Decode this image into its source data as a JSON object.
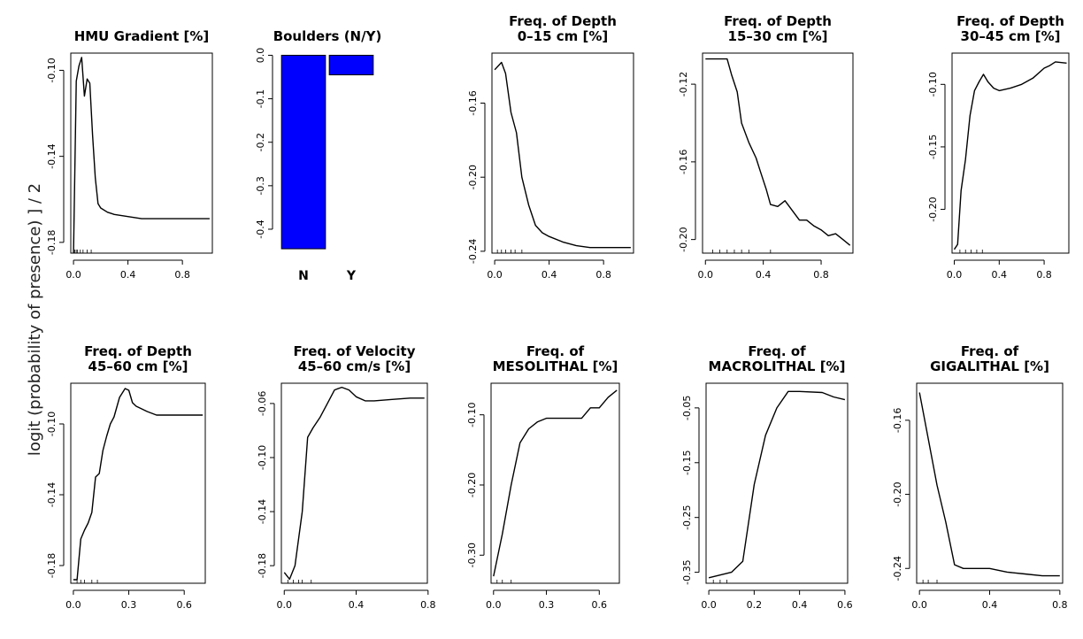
{
  "figure": {
    "ylabel": "logit (probability of presence) ] / 2"
  },
  "chart_data": [
    {
      "type": "line",
      "title": [
        "HMU Gradient [%]"
      ],
      "x": [
        0.0,
        0.02,
        0.04,
        0.06,
        0.08,
        0.1,
        0.12,
        0.14,
        0.16,
        0.18,
        0.2,
        0.25,
        0.3,
        0.4,
        0.5,
        0.6,
        0.8,
        1.0
      ],
      "y": [
        -0.185,
        -0.105,
        -0.098,
        -0.094,
        -0.112,
        -0.104,
        -0.106,
        -0.13,
        -0.15,
        -0.162,
        -0.164,
        -0.166,
        -0.167,
        -0.168,
        -0.169,
        -0.169,
        -0.169,
        -0.169
      ],
      "xlim": [
        -0.02,
        1.02
      ],
      "ylim": [
        -0.185,
        -0.092
      ],
      "xticks": [
        0.0,
        0.4,
        0.8
      ],
      "xticklabels": [
        "0.0",
        "0.4",
        "0.8"
      ],
      "yticks": [
        -0.1,
        -0.14,
        -0.18
      ],
      "yticklabels": [
        "-0.10",
        "-0.14",
        "-0.18"
      ],
      "rug": [
        0.01,
        0.02,
        0.03,
        0.05,
        0.07,
        0.1,
        0.13
      ]
    },
    {
      "type": "bar",
      "title": [
        "Boulders (N/Y)"
      ],
      "categories": [
        "N",
        "Y"
      ],
      "values": [
        -0.445,
        -0.045
      ],
      "ylim": [
        -0.455,
        0.005
      ],
      "yticks": [
        0.0,
        -0.1,
        -0.2,
        -0.3,
        -0.4
      ],
      "yticklabels": [
        "0.0",
        "-0.1",
        "-0.2",
        "-0.3",
        "-0.4"
      ],
      "bar_color": "#0000ff"
    },
    {
      "type": "line",
      "title": [
        "Freq. of Depth",
        "0–15 cm [%]"
      ],
      "x": [
        0.0,
        0.05,
        0.08,
        0.12,
        0.16,
        0.2,
        0.25,
        0.3,
        0.35,
        0.4,
        0.5,
        0.6,
        0.7,
        0.8,
        1.0
      ],
      "y": [
        -0.142,
        -0.138,
        -0.144,
        -0.165,
        -0.176,
        -0.2,
        -0.215,
        -0.226,
        -0.23,
        -0.232,
        -0.235,
        -0.237,
        -0.238,
        -0.238,
        -0.238
      ],
      "xlim": [
        -0.02,
        1.02
      ],
      "ylim": [
        -0.241,
        -0.133
      ],
      "xticks": [
        0.0,
        0.4,
        0.8
      ],
      "xticklabels": [
        "0.0",
        "0.4",
        "0.8"
      ],
      "yticks": [
        -0.16,
        -0.2,
        -0.24
      ],
      "yticklabels": [
        "-0.16",
        "-0.20",
        "-0.24"
      ],
      "rug": [
        0.02,
        0.05,
        0.08,
        0.12,
        0.15,
        0.2
      ]
    },
    {
      "type": "line",
      "title": [
        "Freq. of Depth",
        "15–30 cm [%]"
      ],
      "x": [
        0.0,
        0.05,
        0.1,
        0.15,
        0.18,
        0.22,
        0.25,
        0.3,
        0.35,
        0.38,
        0.42,
        0.45,
        0.5,
        0.55,
        0.6,
        0.65,
        0.7,
        0.75,
        0.8,
        0.85,
        0.9,
        0.95,
        1.0
      ],
      "y": [
        -0.107,
        -0.107,
        -0.107,
        -0.107,
        -0.115,
        -0.124,
        -0.14,
        -0.15,
        -0.158,
        -0.165,
        -0.174,
        -0.182,
        -0.183,
        -0.18,
        -0.185,
        -0.19,
        -0.19,
        -0.193,
        -0.195,
        -0.198,
        -0.197,
        -0.2,
        -0.203
      ],
      "xlim": [
        -0.02,
        1.02
      ],
      "ylim": [
        -0.207,
        -0.104
      ],
      "xticks": [
        0.0,
        0.4,
        0.8
      ],
      "xticklabels": [
        "0.0",
        "0.4",
        "0.8"
      ],
      "yticks": [
        -0.12,
        -0.16,
        -0.2
      ],
      "yticklabels": [
        "-0.12",
        "-0.16",
        "-0.20"
      ],
      "rug": [
        0.05,
        0.1,
        0.15,
        0.2,
        0.25,
        0.3,
        0.45
      ]
    },
    {
      "type": "line",
      "title": [
        "Freq. of Depth",
        "30–45 cm [%]"
      ],
      "x": [
        0.0,
        0.03,
        0.06,
        0.1,
        0.14,
        0.18,
        0.22,
        0.26,
        0.3,
        0.35,
        0.4,
        0.5,
        0.6,
        0.7,
        0.8,
        0.85,
        0.9,
        1.0
      ],
      "y": [
        -0.232,
        -0.228,
        -0.185,
        -0.16,
        -0.125,
        -0.105,
        -0.098,
        -0.092,
        -0.098,
        -0.103,
        -0.105,
        -0.103,
        -0.1,
        -0.095,
        -0.087,
        -0.085,
        -0.082,
        -0.083
      ],
      "xlim": [
        -0.02,
        1.02
      ],
      "ylim": [
        -0.235,
        -0.075
      ],
      "xticks": [
        0.0,
        0.4,
        0.8
      ],
      "xticklabels": [
        "0.0",
        "0.4",
        "0.8"
      ],
      "yticks": [
        -0.1,
        -0.15,
        -0.2
      ],
      "yticklabels": [
        "-0.10",
        "-0.15",
        "-0.20"
      ],
      "rug": [
        0.05,
        0.1,
        0.15,
        0.2,
        0.25
      ]
    },
    {
      "type": "line",
      "title": [
        "Freq. of Depth",
        "45–60 cm [%]"
      ],
      "x": [
        0.0,
        0.02,
        0.04,
        0.06,
        0.08,
        0.1,
        0.12,
        0.14,
        0.16,
        0.18,
        0.2,
        0.22,
        0.25,
        0.28,
        0.3,
        0.32,
        0.34,
        0.36,
        0.4,
        0.45,
        0.5,
        0.6,
        0.7
      ],
      "y": [
        -0.188,
        -0.188,
        -0.165,
        -0.16,
        -0.156,
        -0.15,
        -0.13,
        -0.128,
        -0.115,
        -0.107,
        -0.1,
        -0.096,
        -0.085,
        -0.08,
        -0.081,
        -0.088,
        -0.09,
        -0.091,
        -0.093,
        -0.095,
        -0.095,
        -0.095,
        -0.095
      ],
      "xlim": [
        -0.014,
        0.714
      ],
      "ylim": [
        -0.19,
        -0.077
      ],
      "xticks": [
        0.0,
        0.3,
        0.6
      ],
      "xticklabels": [
        "0.0",
        "0.3",
        "0.6"
      ],
      "yticks": [
        -0.1,
        -0.14,
        -0.18
      ],
      "yticklabels": [
        "-0.10",
        "-0.14",
        "-0.18"
      ],
      "rug": [
        0.02,
        0.04,
        0.06,
        0.1,
        0.13
      ]
    },
    {
      "type": "line",
      "title": [
        "Freq. of Velocity",
        "45–60 cm/s [%]"
      ],
      "x": [
        0.0,
        0.03,
        0.06,
        0.1,
        0.13,
        0.16,
        0.2,
        0.24,
        0.28,
        0.32,
        0.36,
        0.4,
        0.45,
        0.5,
        0.6,
        0.7,
        0.78
      ],
      "y": [
        -0.185,
        -0.19,
        -0.18,
        -0.14,
        -0.085,
        -0.078,
        -0.07,
        -0.06,
        -0.05,
        -0.048,
        -0.05,
        -0.055,
        -0.058,
        -0.058,
        -0.057,
        -0.056,
        -0.056
      ],
      "xlim": [
        -0.016,
        0.796
      ],
      "ylim": [
        -0.193,
        -0.045
      ],
      "xticks": [
        0.0,
        0.4,
        0.8
      ],
      "xticklabels": [
        "0.0",
        "0.4",
        "0.8"
      ],
      "yticks": [
        -0.06,
        -0.1,
        -0.14,
        -0.18
      ],
      "yticklabels": [
        "-0.06",
        "-0.10",
        "-0.14",
        "-0.18"
      ],
      "rug": [
        0.02,
        0.05,
        0.08,
        0.1,
        0.15
      ]
    },
    {
      "type": "line",
      "title": [
        "Freq. of",
        "MESOLITHAL [%]"
      ],
      "x": [
        0.0,
        0.05,
        0.1,
        0.15,
        0.2,
        0.25,
        0.3,
        0.4,
        0.5,
        0.55,
        0.6,
        0.65,
        0.7
      ],
      "y": [
        -0.33,
        -0.27,
        -0.2,
        -0.14,
        -0.12,
        -0.11,
        -0.105,
        -0.105,
        -0.105,
        -0.09,
        -0.09,
        -0.075,
        -0.065
      ],
      "xlim": [
        -0.014,
        0.714
      ],
      "ylim": [
        -0.34,
        -0.055
      ],
      "xticks": [
        0.0,
        0.3,
        0.6
      ],
      "xticklabels": [
        "0.0",
        "0.3",
        "0.6"
      ],
      "yticks": [
        -0.1,
        -0.2,
        -0.3
      ],
      "yticklabels": [
        "-0.10",
        "-0.20",
        "-0.30"
      ],
      "rug": [
        0.02,
        0.05,
        0.1
      ]
    },
    {
      "type": "line",
      "title": [
        "Freq. of",
        "MACROLITHAL [%]"
      ],
      "x": [
        0.0,
        0.1,
        0.15,
        0.2,
        0.25,
        0.3,
        0.35,
        0.4,
        0.5,
        0.55,
        0.6
      ],
      "y": [
        -0.36,
        -0.35,
        -0.33,
        -0.19,
        -0.1,
        -0.05,
        -0.02,
        -0.02,
        -0.022,
        -0.03,
        -0.035
      ],
      "xlim": [
        -0.012,
        0.612
      ],
      "ylim": [
        -0.37,
        -0.005
      ],
      "xticks": [
        0.0,
        0.2,
        0.4,
        0.6
      ],
      "xticklabels": [
        "0.0",
        "0.2",
        "0.4",
        "0.6"
      ],
      "yticks": [
        -0.05,
        -0.15,
        -0.25,
        -0.35
      ],
      "yticklabels": [
        "-0.05",
        "-0.15",
        "-0.25",
        "-0.35"
      ],
      "rug": [
        0.02,
        0.05,
        0.08
      ]
    },
    {
      "type": "line",
      "title": [
        "Freq. of",
        "GIGALITHAL [%]"
      ],
      "x": [
        0.0,
        0.05,
        0.1,
        0.15,
        0.2,
        0.25,
        0.3,
        0.4,
        0.5,
        0.6,
        0.7,
        0.8
      ],
      "y": [
        -0.145,
        -0.17,
        -0.195,
        -0.215,
        -0.238,
        -0.24,
        -0.24,
        -0.24,
        -0.242,
        -0.243,
        -0.244,
        -0.244
      ],
      "xlim": [
        -0.016,
        0.816
      ],
      "ylim": [
        -0.248,
        -0.14
      ],
      "xticks": [
        0.0,
        0.4,
        0.8
      ],
      "xticklabels": [
        "0.0",
        "0.4",
        "0.8"
      ],
      "yticks": [
        -0.16,
        -0.2,
        -0.24
      ],
      "yticklabels": [
        "-0.16",
        "-0.20",
        "-0.24"
      ],
      "rug": [
        0.02,
        0.05,
        0.1
      ]
    }
  ]
}
